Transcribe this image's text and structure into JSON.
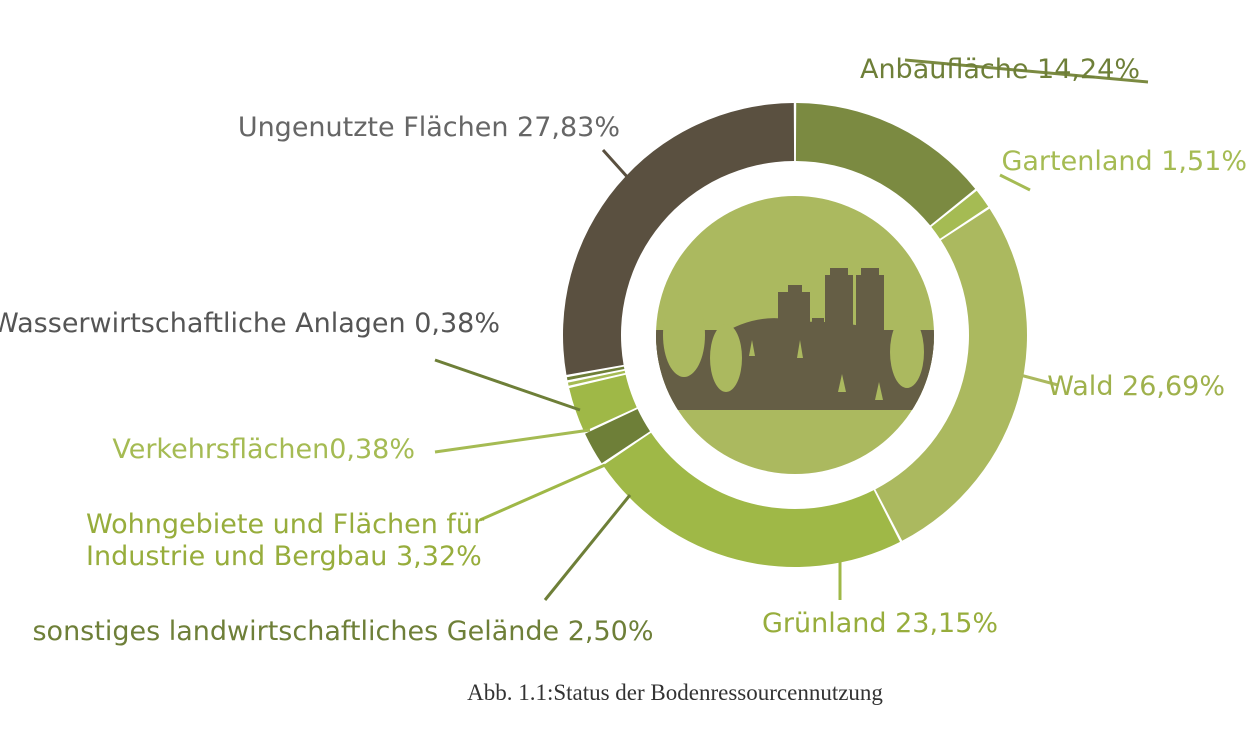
{
  "chart_data": {
    "type": "pie",
    "style": "donut",
    "legend": "none",
    "caption": "Abb. 1.1:Status der Bodenressourcennutzung",
    "slices": [
      {
        "label": "Anbaufläche 14,24%",
        "value": 14.24,
        "color": "#7b8a41",
        "label_color": "#6e7f38"
      },
      {
        "label": "Gartenland 1,51%",
        "value": 1.51,
        "color": "#a5bb53",
        "label_color": "#a5bb53"
      },
      {
        "label": "Wald 26,69%",
        "value": 26.69,
        "color": "#abb95f",
        "label_color": "#9fb14c"
      },
      {
        "label": "Grünland 23,15%",
        "value": 23.15,
        "color": "#9fb847",
        "label_color": "#97ad3c"
      },
      {
        "label": "sonstiges landwirtschaftliches Gelände 2,50%",
        "value": 2.5,
        "color": "#6e7f38",
        "label_color": "#6e7f38"
      },
      {
        "label": "Wohngebiete und Flächen für Industrie und Bergbau 3,32%",
        "value": 3.32,
        "color": "#9fb847",
        "label_color": "#97ad3c"
      },
      {
        "label": "Verkehrsflächen0,38%",
        "value": 0.38,
        "color": "#a5bb53",
        "label_color": "#a5bb53"
      },
      {
        "label": "Wasserwirtschaftliche Anlagen 0,38%",
        "value": 0.38,
        "color": "#6e7f38",
        "label_color": "#555555"
      },
      {
        "label": "Ungenutzte Flächen 27,83%",
        "value": 27.83,
        "color": "#5a5040",
        "label_color": "#666666"
      }
    ]
  }
}
